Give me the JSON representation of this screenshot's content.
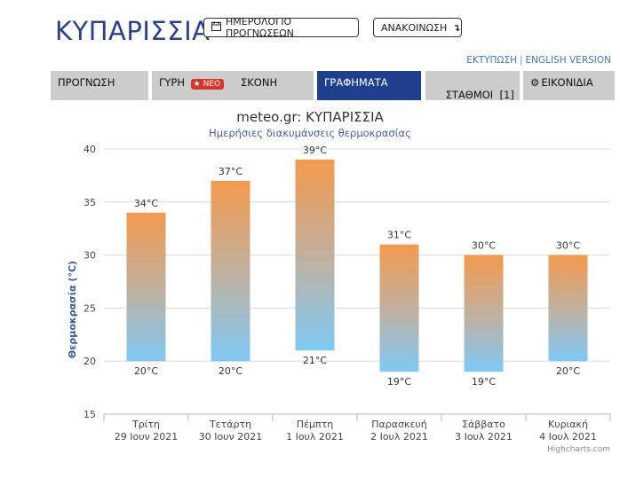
{
  "header": {
    "title": "ΚΥΠΑΡΙΣΣΙΑ",
    "calendar_button": "ΗΜΕΡΟΛΟΓΙΟ ΠΡΟΓΝΩΣΕΩΝ",
    "calendar_icon": "calendar-icon",
    "announcement_button": "ΑΝΑΚΟΙΝΩΣΗ",
    "announcement_icon": "arrow-down-right-icon",
    "print_link": "ΕΚΤΥΠΩΣΗ",
    "separator": "|",
    "english_link": "ENGLISH VERSION"
  },
  "tabs": [
    {
      "label": "ΠΡΟΓΝΩΣΗ",
      "active": false
    },
    {
      "label": "ΓΥΡΗ",
      "badge": "ΝΕΟ",
      "badge_icon": "star-icon",
      "active": false
    },
    {
      "label": "ΣΚΟΝΗ",
      "active": false
    },
    {
      "label": "ΓΡΑΦΗΜΑΤΑ",
      "active": true
    },
    {
      "label": "ΣΤΑΘΜΟΙ  [1]",
      "active": false
    },
    {
      "label": "ΕΙΚΟΝΙΔΙΑ",
      "icon": "gear-icon",
      "active": false
    }
  ],
  "colors": {
    "title": "#2d3f8f",
    "active_tab": "#1f3f8f",
    "tab": "#cccccc",
    "bar_top": "#f39a4e",
    "bar_bottom": "#7fc9f5",
    "badge": "#d9342b"
  },
  "chart_data": {
    "type": "bar",
    "subtype": "columnrange",
    "title": "meteo.gr: ΚΥΠΑΡΙΣΣΙΑ",
    "subtitle": "Ημερήσιες διακυμάνσεις θερμοκρασίας",
    "ylabel": "Θερμοκρασία (°C)",
    "ylim": [
      15,
      40
    ],
    "yticks": [
      15,
      20,
      25,
      30,
      35,
      40
    ],
    "grid": true,
    "credits": "Highcharts.com",
    "categories": [
      [
        "Τρίτη",
        "29 Ιουν 2021"
      ],
      [
        "Τετάρτη",
        "30 Ιουν 2021"
      ],
      [
        "Πέμπτη",
        "1 Ιουλ 2021"
      ],
      [
        "Παρασκευή",
        "2 Ιουλ 2021"
      ],
      [
        "Σάββατο",
        "3 Ιουλ 2021"
      ],
      [
        "Κυριακή",
        "4 Ιουλ 2021"
      ]
    ],
    "high": [
      34,
      37,
      39,
      31,
      30,
      30
    ],
    "low": [
      20,
      20,
      21,
      19,
      19,
      20
    ],
    "high_labels": [
      "34°C",
      "37°C",
      "39°C",
      "31°C",
      "30°C",
      "30°C"
    ],
    "low_labels": [
      "20°C",
      "20°C",
      "21°C",
      "19°C",
      "19°C",
      "20°C"
    ]
  }
}
